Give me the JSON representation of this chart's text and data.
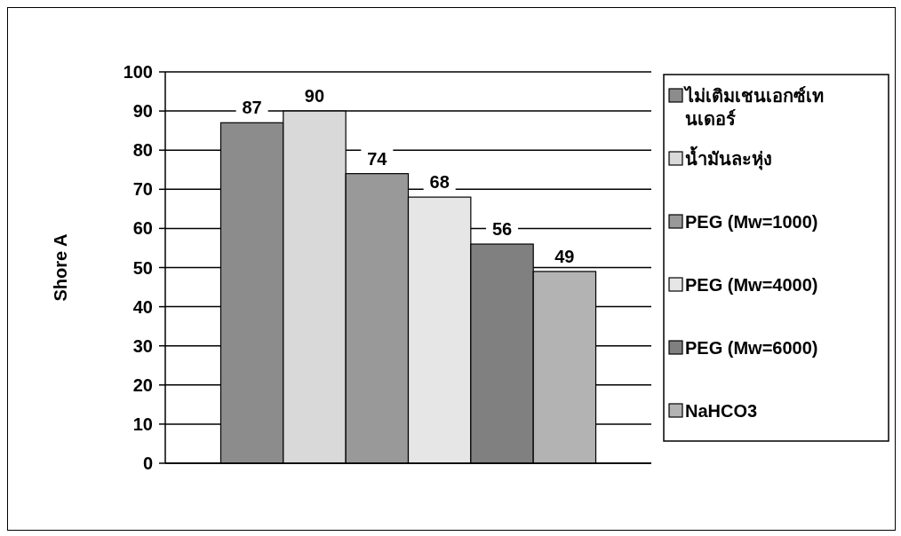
{
  "chart_data": {
    "type": "bar",
    "categories": [
      null
    ],
    "ylabel": "Shore A",
    "ylim": [
      0,
      100
    ],
    "yticks": [
      0,
      10,
      20,
      30,
      40,
      50,
      60,
      70,
      80,
      90,
      100
    ],
    "grid": "y",
    "legend": "right",
    "data_labels": true,
    "series": [
      {
        "name": "ไม่เติมเชนเอกซ์เทนเดอร์",
        "color": "#8c8c8c",
        "values": [
          87
        ]
      },
      {
        "name": "น้ำมันละหุ่ง",
        "color": "#d9d9d9",
        "values": [
          90
        ]
      },
      {
        "name": "PEG (Mw=1000)",
        "color": "#999999",
        "values": [
          74
        ]
      },
      {
        "name": "PEG (Mw=4000)",
        "color": "#e6e6e6",
        "values": [
          68
        ]
      },
      {
        "name": "PEG (Mw=6000)",
        "color": "#808080",
        "values": [
          56
        ]
      },
      {
        "name": "NaHCO3",
        "color": "#b3b3b3",
        "values": [
          49
        ]
      }
    ]
  }
}
